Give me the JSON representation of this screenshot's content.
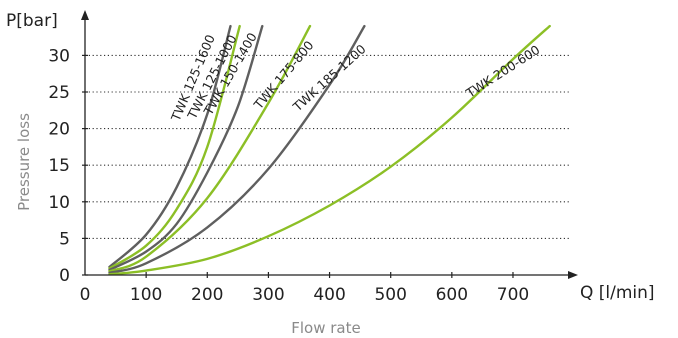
{
  "chart_data": {
    "type": "line",
    "xlabel": "Flow rate",
    "ylabel": "Pressure loss",
    "x_unit_label": "Q [l/min]",
    "y_unit_label": "P[bar]",
    "xlim": [
      0,
      780
    ],
    "ylim": [
      0,
      34
    ],
    "x_ticks": [
      0,
      100,
      200,
      300,
      400,
      500,
      600,
      700
    ],
    "y_ticks": [
      0,
      5,
      10,
      15,
      20,
      25,
      30
    ],
    "grid": {
      "horizontal": true,
      "style": "dotted"
    },
    "colors": {
      "gray": "#5f5f5f",
      "green": "#8cbf26",
      "grid": "#333333",
      "axis": "#222222"
    },
    "series": [
      {
        "name": "TWK 125-1600",
        "color": "#5f5f5f",
        "points": [
          [
            40,
            1.1
          ],
          [
            100,
            5.5
          ],
          [
            150,
            12
          ],
          [
            200,
            22
          ],
          [
            238,
            34
          ]
        ]
      },
      {
        "name": "TWK 125-1000",
        "color": "#8cbf26",
        "points": [
          [
            40,
            0.9
          ],
          [
            100,
            4.0
          ],
          [
            150,
            9.0
          ],
          [
            200,
            17.5
          ],
          [
            253,
            34
          ]
        ]
      },
      {
        "name": "TWK 150-1400",
        "color": "#5f5f5f",
        "points": [
          [
            40,
            0.7
          ],
          [
            100,
            3.2
          ],
          [
            150,
            7.0
          ],
          [
            200,
            14
          ],
          [
            250,
            23
          ],
          [
            290,
            34
          ]
        ]
      },
      {
        "name": "TWK 175-800",
        "color": "#8cbf26",
        "points": [
          [
            40,
            0.5
          ],
          [
            100,
            2.5
          ],
          [
            200,
            10.5
          ],
          [
            300,
            23.5
          ],
          [
            368,
            34
          ]
        ]
      },
      {
        "name": "TWK 185-1200",
        "color": "#5f5f5f",
        "points": [
          [
            40,
            0.3
          ],
          [
            100,
            1.6
          ],
          [
            200,
            6.5
          ],
          [
            300,
            14.5
          ],
          [
            400,
            26
          ],
          [
            457,
            34
          ]
        ]
      },
      {
        "name": "TWK 200-600",
        "color": "#8cbf26",
        "points": [
          [
            40,
            0.1
          ],
          [
            100,
            0.6
          ],
          [
            200,
            2.2
          ],
          [
            300,
            5.3
          ],
          [
            400,
            9.5
          ],
          [
            500,
            14.8
          ],
          [
            600,
            21.5
          ],
          [
            700,
            29.5
          ],
          [
            760,
            34
          ]
        ]
      }
    ]
  }
}
